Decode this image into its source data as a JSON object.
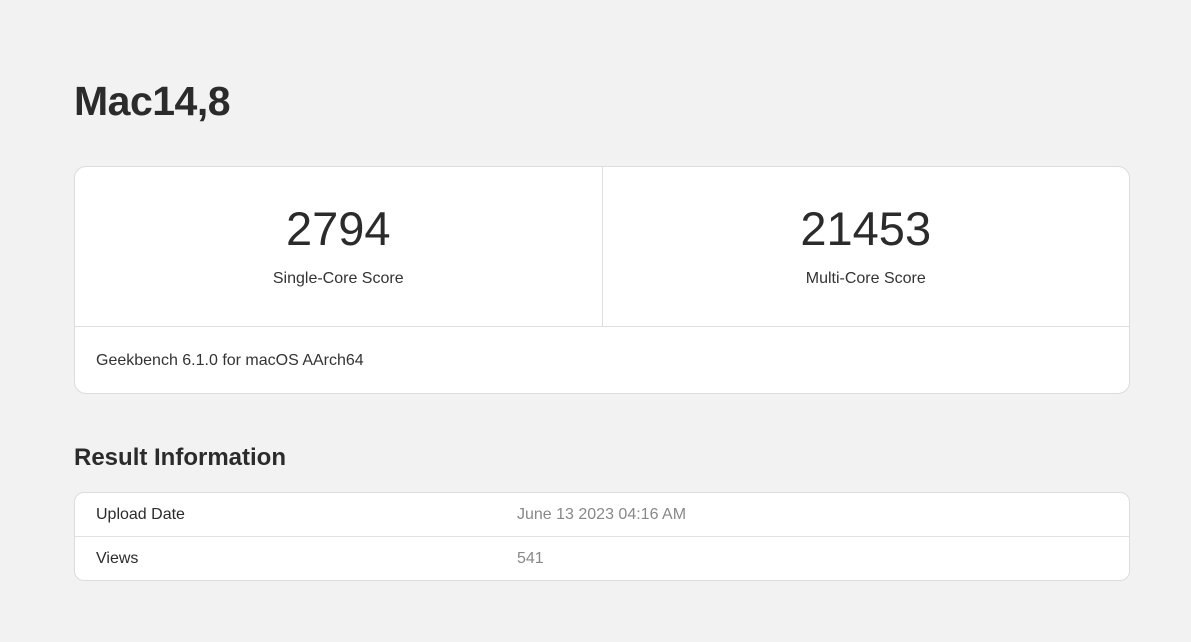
{
  "page": {
    "title": "Mac14,8"
  },
  "scores": {
    "single": {
      "value": "2794",
      "label": "Single-Core Score"
    },
    "multi": {
      "value": "21453",
      "label": "Multi-Core Score"
    },
    "footer": "Geekbench 6.1.0 for macOS AArch64"
  },
  "result_info": {
    "heading": "Result Information",
    "rows": [
      {
        "key": "Upload Date",
        "value": "June 13 2023 04:16 AM"
      },
      {
        "key": "Views",
        "value": "541"
      }
    ]
  }
}
